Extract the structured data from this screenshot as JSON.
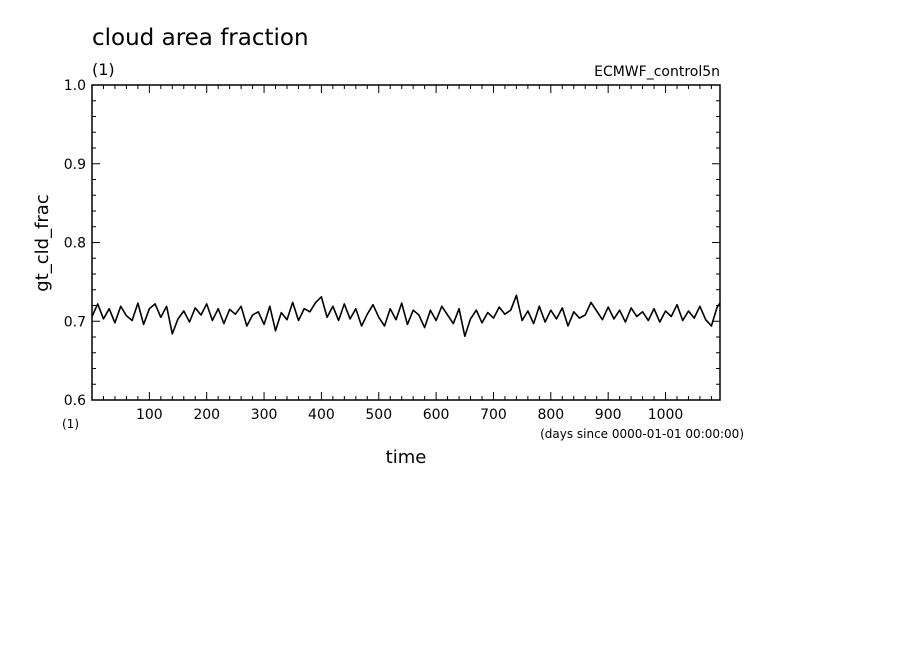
{
  "chart_data": {
    "type": "line",
    "title": "cloud area fraction",
    "title_unit": "(1)",
    "model_label": "ECMWF_control5n",
    "ylabel": "gt_cld_frac",
    "y_unit": "(1)",
    "xlabel": "time",
    "x_unit": "(days since 0000-01-01 00:00:00)",
    "xlim": [
      0,
      1095
    ],
    "ylim": [
      0.6,
      1.0
    ],
    "x_ticks": [
      100,
      200,
      300,
      400,
      500,
      600,
      700,
      800,
      900,
      1000
    ],
    "x_tick_labels": [
      "100",
      "200",
      "300",
      "400",
      "500",
      "600",
      "700",
      "800",
      "900",
      "1000"
    ],
    "y_ticks": [
      0.6,
      0.7,
      0.8,
      0.9,
      1.0
    ],
    "y_tick_labels": [
      "0.6",
      "0.7",
      "0.8",
      "0.9",
      "1.0"
    ],
    "grid": false,
    "line_color": "#000000",
    "series": [
      {
        "x": [
          0,
          10,
          20,
          30,
          40,
          50,
          60,
          70,
          80,
          90,
          100,
          110,
          120,
          130,
          140,
          150,
          160,
          170,
          180,
          190,
          200,
          210,
          220,
          230,
          240,
          250,
          260,
          270,
          280,
          290,
          300,
          310,
          320,
          330,
          340,
          350,
          360,
          370,
          380,
          390,
          400,
          410,
          420,
          430,
          440,
          450,
          460,
          470,
          480,
          490,
          500,
          510,
          520,
          530,
          540,
          550,
          560,
          570,
          580,
          590,
          600,
          610,
          620,
          630,
          640,
          650,
          660,
          670,
          680,
          690,
          700,
          710,
          720,
          730,
          740,
          750,
          760,
          770,
          780,
          790,
          800,
          810,
          820,
          830,
          840,
          850,
          860,
          870,
          880,
          890,
          900,
          910,
          920,
          930,
          940,
          950,
          960,
          970,
          980,
          990,
          1000,
          1010,
          1020,
          1030,
          1040,
          1050,
          1060,
          1070,
          1080,
          1090,
          1095
        ],
        "values": [
          0.706,
          0.722,
          0.703,
          0.716,
          0.698,
          0.719,
          0.707,
          0.701,
          0.723,
          0.696,
          0.716,
          0.722,
          0.705,
          0.719,
          0.684,
          0.703,
          0.713,
          0.699,
          0.717,
          0.708,
          0.722,
          0.701,
          0.716,
          0.697,
          0.715,
          0.709,
          0.719,
          0.694,
          0.708,
          0.712,
          0.696,
          0.719,
          0.688,
          0.711,
          0.702,
          0.724,
          0.701,
          0.716,
          0.712,
          0.724,
          0.731,
          0.705,
          0.719,
          0.701,
          0.722,
          0.703,
          0.716,
          0.694,
          0.709,
          0.721,
          0.705,
          0.694,
          0.716,
          0.702,
          0.723,
          0.696,
          0.714,
          0.708,
          0.692,
          0.714,
          0.701,
          0.719,
          0.708,
          0.697,
          0.716,
          0.681,
          0.703,
          0.714,
          0.698,
          0.711,
          0.704,
          0.718,
          0.709,
          0.714,
          0.733,
          0.701,
          0.713,
          0.697,
          0.719,
          0.699,
          0.714,
          0.703,
          0.717,
          0.694,
          0.712,
          0.704,
          0.708,
          0.724,
          0.713,
          0.702,
          0.718,
          0.703,
          0.714,
          0.699,
          0.717,
          0.706,
          0.712,
          0.701,
          0.716,
          0.699,
          0.713,
          0.706,
          0.721,
          0.701,
          0.713,
          0.704,
          0.719,
          0.702,
          0.694,
          0.718,
          0.723
        ]
      }
    ]
  }
}
